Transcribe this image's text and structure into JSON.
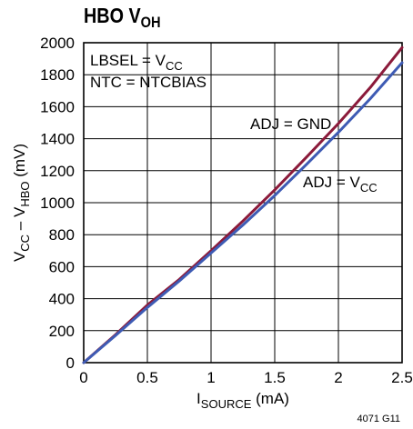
{
  "title": {
    "main": "HBO V",
    "sub": "OH"
  },
  "chart_data": {
    "type": "line",
    "title": "HBO VOH",
    "xlabel": {
      "main": "I",
      "sub": "SOURCE",
      "suffix": " (mA)"
    },
    "ylabel": {
      "p1": "V",
      "s1": "CC",
      "p2": " – V",
      "s2": "HBO",
      "p3": " (mV)"
    },
    "xlim": [
      0,
      2.5
    ],
    "ylim": [
      0,
      2000
    ],
    "xticks": [
      0,
      0.5,
      1,
      1.5,
      2,
      2.5
    ],
    "xtick_labels": [
      "0",
      "0.5",
      "1",
      "1.5",
      "2",
      "2.5"
    ],
    "yticks": [
      0,
      200,
      400,
      600,
      800,
      1000,
      1200,
      1400,
      1600,
      1800,
      2000
    ],
    "ytick_labels": [
      "0",
      "200",
      "400",
      "600",
      "800",
      "1000",
      "1200",
      "1400",
      "1600",
      "1800",
      "2000"
    ],
    "grid": true,
    "conditions": [
      {
        "main": "LBSEL = V",
        "sub": "CC"
      },
      {
        "main": "NTC = NTCBIAS",
        "sub": ""
      }
    ],
    "series": [
      {
        "name": "ADJ = GND",
        "label_main": "ADJ = GND",
        "label_sub": "",
        "color": "#8b1a3a",
        "x": [
          0,
          0.25,
          0.5,
          0.75,
          1.0,
          1.25,
          1.5,
          1.75,
          2.0,
          2.25,
          2.5
        ],
        "y": [
          0,
          175,
          360,
          520,
          700,
          885,
          1080,
          1285,
          1495,
          1720,
          1970
        ]
      },
      {
        "name": "ADJ = VCC",
        "label_main": "ADJ = V",
        "label_sub": "CC",
        "color": "#3e5bb4",
        "x": [
          0,
          0.25,
          0.5,
          0.75,
          1.0,
          1.25,
          1.5,
          1.75,
          2.0,
          2.25,
          2.5
        ],
        "y": [
          0,
          170,
          345,
          510,
          685,
          860,
          1045,
          1240,
          1440,
          1650,
          1875
        ]
      }
    ]
  },
  "figure_code": "4071 G11"
}
